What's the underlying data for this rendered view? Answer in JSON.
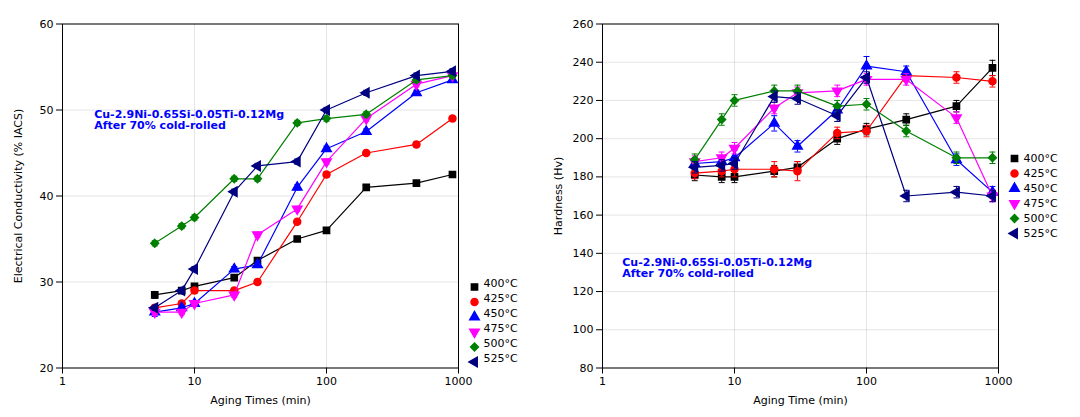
{
  "chart_data": [
    {
      "type": "line",
      "xlabel": "Aging Times (min)",
      "ylabel": "Electrical Conductivity (% IACS)",
      "log": "x",
      "xlim": [
        1,
        1000
      ],
      "xticks": [
        1,
        10,
        100,
        1000
      ],
      "ylim": [
        20,
        60
      ],
      "yticks": [
        20,
        30,
        40,
        50,
        60
      ],
      "grid": true,
      "legend": "lower right",
      "annotations": [
        {
          "text": "Cu-2.9Ni-0.65Si-0.05Ti-0.12Mg\nAfter 70% cold-rolled",
          "color": "#0000FF"
        }
      ],
      "series": [
        {
          "name": "400°C",
          "color": "#000000",
          "marker": "square",
          "x": [
            5,
            8,
            10,
            20,
            30,
            60,
            100,
            200,
            480,
            900
          ],
          "values": [
            28.5,
            29.0,
            29.5,
            30.5,
            32.5,
            35.0,
            36.0,
            41.0,
            41.5,
            42.5
          ],
          "yerr": [
            0.4,
            0.3,
            0.3,
            0.3,
            0.3,
            0.3,
            0.3,
            0.3,
            0.3,
            0.3
          ]
        },
        {
          "name": "425°C",
          "color": "#FF0000",
          "marker": "circle",
          "x": [
            5,
            8,
            10,
            20,
            30,
            60,
            100,
            200,
            480,
            900
          ],
          "values": [
            27.0,
            27.5,
            29.0,
            29.0,
            30.0,
            37.0,
            42.5,
            45.0,
            46.0,
            49.0
          ],
          "yerr": [
            0.3,
            0.3,
            0.3,
            0.3,
            0.3,
            0.3,
            0.3,
            0.3,
            0.3,
            0.3
          ]
        },
        {
          "name": "450°C",
          "color": "#0000FF",
          "marker": "triangle-up",
          "x": [
            5,
            8,
            10,
            20,
            30,
            60,
            100,
            200,
            480,
            900
          ],
          "values": [
            26.5,
            27.0,
            27.5,
            31.5,
            32.0,
            41.0,
            45.5,
            47.5,
            52.0,
            53.5
          ],
          "yerr": [
            0.5,
            0.3,
            0.3,
            0.3,
            0.3,
            0.3,
            0.3,
            0.3,
            0.3,
            0.3
          ]
        },
        {
          "name": "475°C",
          "color": "#FF00FF",
          "marker": "triangle-down",
          "x": [
            5,
            8,
            10,
            20,
            30,
            60,
            100,
            200,
            480,
            900
          ],
          "values": [
            26.5,
            26.5,
            27.5,
            28.5,
            35.5,
            38.5,
            44.0,
            49.0,
            53.0,
            54.0
          ],
          "yerr": [
            0.3,
            0.3,
            0.3,
            0.3,
            0.3,
            0.3,
            0.3,
            0.3,
            0.3,
            0.3
          ]
        },
        {
          "name": "500°C",
          "color": "#008000",
          "marker": "diamond",
          "x": [
            5,
            8,
            10,
            20,
            30,
            60,
            100,
            200,
            480,
            900
          ],
          "values": [
            34.5,
            36.5,
            37.5,
            42.0,
            42.0,
            48.5,
            49.0,
            49.5,
            53.5,
            54.0
          ],
          "yerr": [
            0.3,
            0.3,
            0.3,
            0.3,
            0.3,
            0.3,
            0.3,
            0.3,
            0.3,
            0.3
          ]
        },
        {
          "name": "525°C",
          "color": "#000080",
          "marker": "triangle-left",
          "x": [
            5,
            8,
            10,
            20,
            30,
            60,
            100,
            200,
            480,
            900
          ],
          "values": [
            27.0,
            29.0,
            31.5,
            40.5,
            43.5,
            44.0,
            50.0,
            52.0,
            54.0,
            54.5
          ],
          "yerr": [
            0.3,
            0.3,
            0.3,
            0.3,
            0.3,
            0.3,
            0.3,
            0.3,
            0.3,
            0.3
          ]
        }
      ]
    },
    {
      "type": "line",
      "xlabel": "Aging Time (min)",
      "ylabel": "Hardness (Hv)",
      "log": "x",
      "xlim": [
        1,
        1000
      ],
      "xticks": [
        1,
        10,
        100,
        1000
      ],
      "ylim": [
        80,
        260
      ],
      "yticks": [
        80,
        100,
        120,
        140,
        160,
        180,
        200,
        220,
        240,
        260
      ],
      "grid": true,
      "legend": "center right",
      "annotations": [
        {
          "text": "Cu-2.9Ni-0.65Si-0.05Ti-0.12Mg\nAfter 70% cold-rolled",
          "color": "#0000FF"
        }
      ],
      "series": [
        {
          "name": "400°C",
          "color": "#000000",
          "marker": "square",
          "x": [
            5,
            8,
            10,
            20,
            30,
            60,
            100,
            200,
            480,
            900
          ],
          "values": [
            181,
            180,
            180,
            183,
            185,
            200,
            205,
            210,
            217,
            237
          ],
          "yerr": [
            3,
            3,
            3,
            3,
            3,
            3,
            3,
            3,
            3,
            4
          ]
        },
        {
          "name": "425°C",
          "color": "#FF0000",
          "marker": "circle",
          "x": [
            5,
            8,
            10,
            20,
            30,
            60,
            100,
            200,
            480,
            900
          ],
          "values": [
            182,
            183,
            184,
            184,
            183,
            203,
            204,
            233,
            232,
            230
          ],
          "yerr": [
            3,
            3,
            4,
            4,
            5,
            3,
            3,
            3,
            3,
            3
          ]
        },
        {
          "name": "450°C",
          "color": "#0000FF",
          "marker": "triangle-up",
          "x": [
            5,
            8,
            10,
            20,
            30,
            60,
            100,
            200,
            480,
            900
          ],
          "values": [
            187,
            188,
            190,
            208,
            196,
            215,
            238,
            235,
            189,
            172
          ],
          "yerr": [
            3,
            3,
            4,
            4,
            3,
            3,
            5,
            3,
            3,
            3
          ]
        },
        {
          "name": "475°C",
          "color": "#FF00FF",
          "marker": "triangle-down",
          "x": [
            5,
            8,
            10,
            20,
            30,
            60,
            100,
            200,
            480,
            900
          ],
          "values": [
            188,
            190,
            195,
            216,
            224,
            225,
            231,
            231,
            211,
            170
          ],
          "yerr": [
            3,
            3,
            3,
            3,
            3,
            3,
            3,
            3,
            3,
            3
          ]
        },
        {
          "name": "500°C",
          "color": "#008000",
          "marker": "diamond",
          "x": [
            5,
            8,
            10,
            20,
            30,
            60,
            100,
            200,
            480,
            900
          ],
          "values": [
            189,
            210,
            220,
            225,
            225,
            217,
            218,
            204,
            190,
            190
          ],
          "yerr": [
            3,
            3,
            3,
            3,
            3,
            3,
            3,
            3,
            3,
            3
          ]
        },
        {
          "name": "525°C",
          "color": "#000080",
          "marker": "triangle-left",
          "x": [
            5,
            8,
            10,
            20,
            30,
            60,
            100,
            200,
            480,
            900
          ],
          "values": [
            185,
            186,
            187,
            222,
            221,
            212,
            232,
            170,
            172,
            170
          ],
          "yerr": [
            3,
            3,
            3,
            3,
            3,
            3,
            3,
            3,
            3,
            3
          ]
        }
      ]
    }
  ]
}
